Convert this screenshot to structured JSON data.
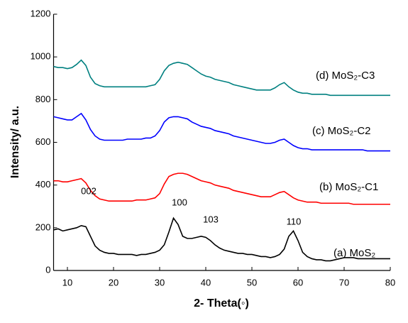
{
  "chart_data": {
    "type": "line",
    "xlabel": "2- Theta(◦)",
    "ylabel": "Intensity/ a.u.",
    "x": [
      7,
      8,
      9,
      10,
      11,
      12,
      13,
      14,
      15,
      16,
      17,
      18,
      19,
      20,
      21,
      22,
      23,
      24,
      25,
      26,
      27,
      28,
      29,
      30,
      31,
      32,
      33,
      34,
      35,
      36,
      37,
      38,
      39,
      40,
      41,
      42,
      43,
      44,
      45,
      46,
      47,
      48,
      49,
      50,
      51,
      52,
      53,
      54,
      55,
      56,
      57,
      58,
      59,
      60,
      61,
      62,
      63,
      64,
      65,
      66,
      67,
      68,
      69,
      70,
      71,
      72,
      73,
      74,
      75,
      76,
      77,
      78,
      79,
      80
    ],
    "series": [
      {
        "name": "(a) MoS₂",
        "color": "#000000",
        "values": [
          190,
          195,
          185,
          190,
          195,
          200,
          210,
          205,
          160,
          115,
          95,
          85,
          80,
          80,
          75,
          75,
          75,
          75,
          70,
          75,
          75,
          80,
          85,
          95,
          120,
          180,
          245,
          215,
          160,
          150,
          150,
          155,
          160,
          155,
          140,
          120,
          105,
          95,
          90,
          85,
          80,
          80,
          75,
          75,
          70,
          65,
          65,
          60,
          65,
          75,
          100,
          160,
          185,
          140,
          85,
          65,
          55,
          50,
          50,
          45,
          45,
          50,
          55,
          60,
          60,
          60,
          55,
          55,
          55,
          55,
          55,
          55,
          55,
          55
        ]
      },
      {
        "name": "(b) MoS₂-C1",
        "color": "#ff0000",
        "values": [
          420,
          420,
          415,
          415,
          420,
          425,
          430,
          410,
          375,
          350,
          335,
          330,
          325,
          325,
          325,
          325,
          325,
          325,
          330,
          330,
          330,
          335,
          340,
          360,
          405,
          440,
          450,
          455,
          455,
          450,
          440,
          430,
          420,
          415,
          410,
          400,
          395,
          390,
          385,
          375,
          370,
          365,
          360,
          355,
          350,
          345,
          345,
          345,
          355,
          365,
          370,
          355,
          340,
          330,
          325,
          320,
          320,
          320,
          315,
          315,
          315,
          315,
          315,
          315,
          315,
          310,
          310,
          310,
          310,
          310,
          310,
          310,
          310,
          310
        ]
      },
      {
        "name": "(c) MoS₂-C2",
        "color": "#0000ff",
        "values": [
          720,
          715,
          710,
          705,
          705,
          720,
          735,
          705,
          660,
          630,
          615,
          610,
          610,
          610,
          610,
          610,
          615,
          615,
          615,
          615,
          620,
          620,
          630,
          655,
          695,
          715,
          720,
          720,
          715,
          710,
          695,
          685,
          675,
          670,
          665,
          655,
          650,
          645,
          640,
          630,
          625,
          620,
          615,
          610,
          605,
          600,
          595,
          595,
          600,
          610,
          615,
          600,
          585,
          575,
          570,
          570,
          565,
          565,
          565,
          565,
          565,
          565,
          565,
          565,
          565,
          565,
          565,
          565,
          560,
          560,
          560,
          560,
          560,
          560
        ]
      },
      {
        "name": "(d) MoS₂-C3",
        "color": "#008080",
        "values": [
          955,
          950,
          950,
          945,
          950,
          965,
          985,
          960,
          905,
          875,
          865,
          860,
          860,
          860,
          860,
          860,
          860,
          860,
          860,
          860,
          860,
          865,
          870,
          895,
          935,
          960,
          970,
          975,
          970,
          965,
          950,
          935,
          920,
          910,
          905,
          895,
          890,
          885,
          880,
          870,
          865,
          860,
          855,
          850,
          845,
          845,
          845,
          845,
          855,
          870,
          880,
          860,
          845,
          835,
          830,
          830,
          825,
          825,
          825,
          825,
          820,
          820,
          820,
          820,
          820,
          820,
          820,
          820,
          820,
          820,
          820,
          820,
          820,
          820
        ]
      }
    ],
    "annotations": [
      "002",
      "100",
      "103",
      "110"
    ],
    "xlim": [
      7,
      80
    ],
    "xticks": [
      10,
      20,
      30,
      40,
      50,
      60,
      70,
      80
    ],
    "ylim": [
      0,
      1200
    ],
    "yticks": [
      0,
      200,
      400,
      600,
      800,
      1000,
      1200
    ]
  }
}
